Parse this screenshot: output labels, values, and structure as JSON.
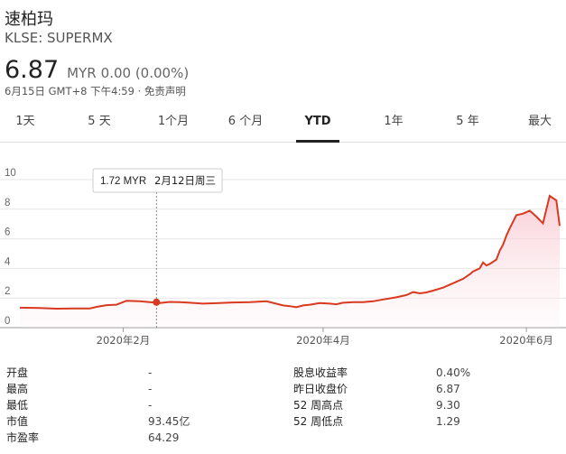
{
  "header": {
    "name": "速柏玛",
    "ticker": "KLSE: SUPERMX",
    "price": "6.87",
    "currency": "MYR",
    "change": "0.00 (0.00%)",
    "timestamp": "6月15日 GMT+8 下午4:59 · 免责声明"
  },
  "tabs": [
    "1天",
    "5 天",
    "1个月",
    "6 个月",
    "YTD",
    "1年",
    "5 年",
    "最大"
  ],
  "active_tab": "YTD",
  "tooltip": {
    "value": "1.72 MYR",
    "date": "2月12日周三"
  },
  "colors": {
    "line": "#d9391f",
    "fill": "#f7c6cf",
    "grid": "#e6e6e6",
    "marker": "#d9391f"
  },
  "chart_data": {
    "type": "area",
    "y_ticks": [
      "10",
      "8",
      "6",
      "4",
      "2",
      "0"
    ],
    "ylim": [
      0,
      10
    ],
    "x_ticks": [
      "2020年2月",
      "2020年4月",
      "2020年6月"
    ],
    "x_tick_days": [
      32,
      92,
      153
    ],
    "series": [
      {
        "days": [
          1,
          7,
          12,
          17,
          22,
          24,
          27,
          30,
          33,
          37,
          40,
          43,
          46,
          49,
          52,
          56,
          60,
          65,
          70,
          75,
          80,
          82,
          84,
          86,
          88,
          91,
          94,
          96,
          98,
          101,
          104,
          107,
          110,
          114,
          117,
          119,
          121,
          123,
          125,
          128,
          130,
          132,
          134,
          136,
          137,
          139,
          140,
          141,
          142,
          144,
          145,
          146,
          147,
          148,
          150,
          152,
          154,
          156,
          158,
          160,
          162,
          163
        ],
        "values": [
          1.35,
          1.33,
          1.28,
          1.3,
          1.29,
          1.4,
          1.52,
          1.55,
          1.82,
          1.78,
          1.72,
          1.66,
          1.74,
          1.72,
          1.68,
          1.62,
          1.65,
          1.7,
          1.72,
          1.78,
          1.5,
          1.45,
          1.38,
          1.5,
          1.55,
          1.66,
          1.62,
          1.58,
          1.68,
          1.72,
          1.72,
          1.78,
          1.9,
          2.05,
          2.2,
          2.4,
          2.32,
          2.38,
          2.5,
          2.7,
          2.9,
          3.1,
          3.3,
          3.6,
          3.8,
          4.0,
          4.4,
          4.2,
          4.3,
          4.6,
          5.2,
          5.6,
          6.2,
          6.7,
          7.6,
          7.7,
          7.9,
          7.5,
          7.05,
          8.9,
          8.6,
          6.87
        ]
      }
    ],
    "highlight_day": 42,
    "highlight_value": 1.72
  },
  "stats": {
    "left": [
      {
        "label": "开盘",
        "value": "-"
      },
      {
        "label": "最高",
        "value": "-"
      },
      {
        "label": "最低",
        "value": "-"
      },
      {
        "label": "市值",
        "value": "93.45亿"
      },
      {
        "label": "市盈率",
        "value": "64.29"
      }
    ],
    "right": [
      {
        "label": "股息收益率",
        "value": "0.40%"
      },
      {
        "label": "昨日收盘价",
        "value": "6.87"
      },
      {
        "label": "52 周高点",
        "value": "9.30"
      },
      {
        "label": "52 周低点",
        "value": "1.29"
      }
    ]
  }
}
